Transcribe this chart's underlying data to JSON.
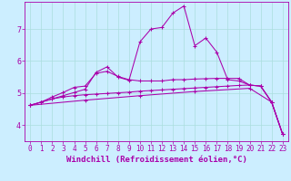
{
  "xlabel": "Windchill (Refroidissement éolien,°C)",
  "bg_color": "#cceeff",
  "line_color": "#aa00aa",
  "xlim": [
    -0.5,
    23.5
  ],
  "ylim": [
    3.5,
    7.85
  ],
  "xticks": [
    0,
    1,
    2,
    3,
    4,
    5,
    6,
    7,
    8,
    9,
    10,
    11,
    12,
    13,
    14,
    15,
    16,
    17,
    18,
    19,
    20,
    21,
    22,
    23
  ],
  "yticks": [
    4,
    5,
    6,
    7
  ],
  "lines": [
    {
      "x": [
        0,
        5,
        10,
        15,
        20,
        22,
        23
      ],
      "y": [
        4.62,
        4.78,
        4.92,
        5.05,
        5.15,
        4.72,
        3.72
      ]
    },
    {
      "x": [
        0,
        1,
        2,
        3,
        4,
        5,
        6,
        7,
        8,
        9,
        10,
        11,
        12,
        13,
        14,
        15,
        16,
        17,
        18,
        19,
        20,
        21,
        22,
        23
      ],
      "y": [
        4.62,
        4.72,
        4.82,
        4.92,
        5.02,
        5.12,
        5.65,
        5.82,
        5.5,
        5.4,
        6.6,
        7.0,
        7.05,
        7.5,
        7.72,
        6.48,
        6.72,
        6.28,
        5.42,
        5.38,
        5.25,
        5.22,
        4.72,
        3.72
      ]
    },
    {
      "x": [
        0,
        1,
        2,
        3,
        4,
        5,
        6,
        7,
        8,
        9,
        10,
        11,
        12,
        13,
        14,
        15,
        16,
        17,
        18,
        19,
        20,
        21,
        22,
        23
      ],
      "y": [
        4.62,
        4.72,
        4.88,
        5.02,
        5.18,
        5.22,
        5.62,
        5.68,
        5.52,
        5.42,
        5.38,
        5.38,
        5.38,
        5.42,
        5.42,
        5.44,
        5.45,
        5.46,
        5.46,
        5.46,
        5.25,
        5.22,
        4.72,
        3.72
      ]
    },
    {
      "x": [
        0,
        1,
        2,
        3,
        4,
        5,
        6,
        7,
        8,
        9,
        10,
        11,
        12,
        13,
        14,
        15,
        16,
        17,
        18,
        19,
        20,
        21,
        22,
        23
      ],
      "y": [
        4.62,
        4.72,
        4.82,
        4.88,
        4.92,
        4.95,
        4.97,
        4.99,
        5.01,
        5.03,
        5.06,
        5.08,
        5.1,
        5.12,
        5.14,
        5.16,
        5.18,
        5.2,
        5.22,
        5.24,
        5.25,
        5.22,
        4.72,
        3.72
      ]
    }
  ],
  "grid_color": "#aadddd",
  "tick_fontsize": 5.5,
  "xlabel_fontsize": 6.5
}
